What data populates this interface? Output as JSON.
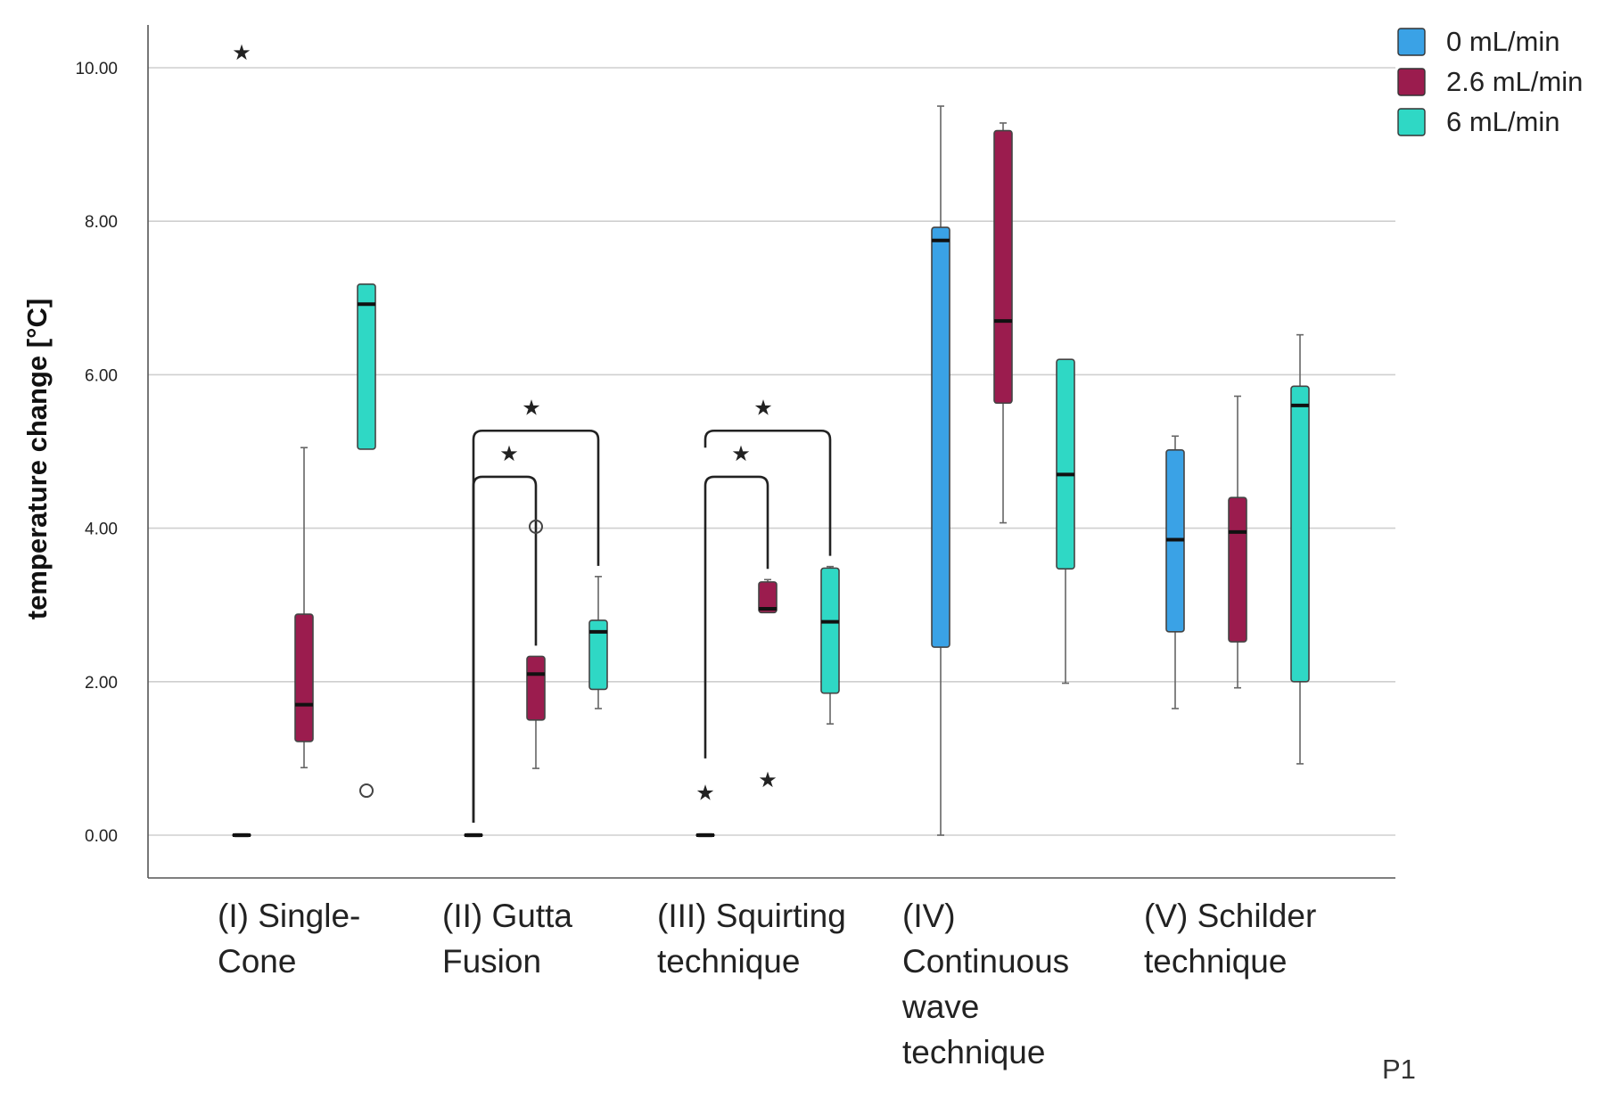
{
  "panel_label": "P1",
  "chart_data": {
    "type": "boxplot",
    "title": "",
    "xlabel": "",
    "ylabel": "temperature change [°C]",
    "ylim": [
      -0.55,
      10.5
    ],
    "yticks": [
      0,
      2,
      4,
      6,
      8,
      10
    ],
    "ytick_labels": [
      "0.00",
      "2.00",
      "4.00",
      "6.00",
      "8.00",
      "10.00"
    ],
    "grid": true,
    "legend_position": "top-right",
    "categories": [
      [
        "(I) Single-",
        "Cone"
      ],
      [
        "(II) Gutta",
        "Fusion"
      ],
      [
        "(III) Squirting",
        "technique"
      ],
      [
        "(IV)",
        "Continuous",
        "wave",
        "technique"
      ],
      [
        "(V) Schilder",
        "technique"
      ]
    ],
    "series": [
      {
        "name": "0 mL/min",
        "color": "#3aa2e6",
        "boxes": [
          {
            "min": 0,
            "q1": 0,
            "median": 0,
            "q3": 0,
            "max": 0,
            "outliers": [],
            "extremes": [
              10.2
            ]
          },
          {
            "min": 0,
            "q1": 0,
            "median": 0,
            "q3": 0,
            "max": 0,
            "outliers": [],
            "extremes": []
          },
          {
            "min": 0,
            "q1": 0,
            "median": 0,
            "q3": 0,
            "max": 0,
            "outliers": [],
            "extremes": [
              0.55
            ]
          },
          {
            "min": 0,
            "q1": 2.45,
            "median": 7.75,
            "q3": 7.92,
            "max": 9.5,
            "outliers": [],
            "extremes": []
          },
          {
            "min": 1.65,
            "q1": 2.65,
            "median": 3.85,
            "q3": 5.02,
            "max": 5.2,
            "outliers": [],
            "extremes": []
          }
        ]
      },
      {
        "name": "2.6 mL/min",
        "color": "#9b1c4e",
        "boxes": [
          {
            "min": 0.88,
            "q1": 1.22,
            "median": 1.7,
            "q3": 2.88,
            "max": 5.05,
            "outliers": [],
            "extremes": []
          },
          {
            "min": 0.87,
            "q1": 1.5,
            "median": 2.1,
            "q3": 2.33,
            "max": 2.33,
            "outliers": [
              4.02
            ],
            "extremes": []
          },
          {
            "min": 2.9,
            "q1": 2.9,
            "median": 2.95,
            "q3": 3.3,
            "max": 3.33,
            "outliers": [],
            "extremes": [
              0.72
            ]
          },
          {
            "min": 4.07,
            "q1": 5.63,
            "median": 6.7,
            "q3": 9.18,
            "max": 9.28,
            "outliers": [],
            "extremes": []
          },
          {
            "min": 1.92,
            "q1": 2.52,
            "median": 3.95,
            "q3": 4.4,
            "max": 5.72,
            "outliers": [],
            "extremes": []
          }
        ]
      },
      {
        "name": "6 mL/min",
        "color": "#2fd8c5",
        "boxes": [
          {
            "min": 5.03,
            "q1": 5.03,
            "median": 6.92,
            "q3": 7.18,
            "max": 7.18,
            "outliers": [
              0.58
            ],
            "extremes": []
          },
          {
            "min": 1.65,
            "q1": 1.9,
            "median": 2.65,
            "q3": 2.8,
            "max": 3.37,
            "outliers": [],
            "extremes": []
          },
          {
            "min": 1.45,
            "q1": 1.85,
            "median": 2.78,
            "q3": 3.48,
            "max": 3.5,
            "outliers": [],
            "extremes": []
          },
          {
            "min": 1.98,
            "q1": 3.47,
            "median": 4.7,
            "q3": 6.2,
            "max": 6.2,
            "outliers": [],
            "extremes": []
          },
          {
            "min": 0.93,
            "q1": 2.0,
            "median": 5.6,
            "q3": 5.85,
            "max": 6.52,
            "outliers": [],
            "extremes": []
          }
        ]
      }
    ],
    "significance": [
      {
        "category": 1,
        "from_series": 0,
        "to_series": 1,
        "label": "★"
      },
      {
        "category": 1,
        "from_series": 0,
        "to_series": 2,
        "label": "★"
      },
      {
        "category": 2,
        "from_series": 0,
        "to_series": 1,
        "label": "★"
      },
      {
        "category": 2,
        "from_series": 0,
        "to_series": 2,
        "label": "★"
      }
    ]
  }
}
